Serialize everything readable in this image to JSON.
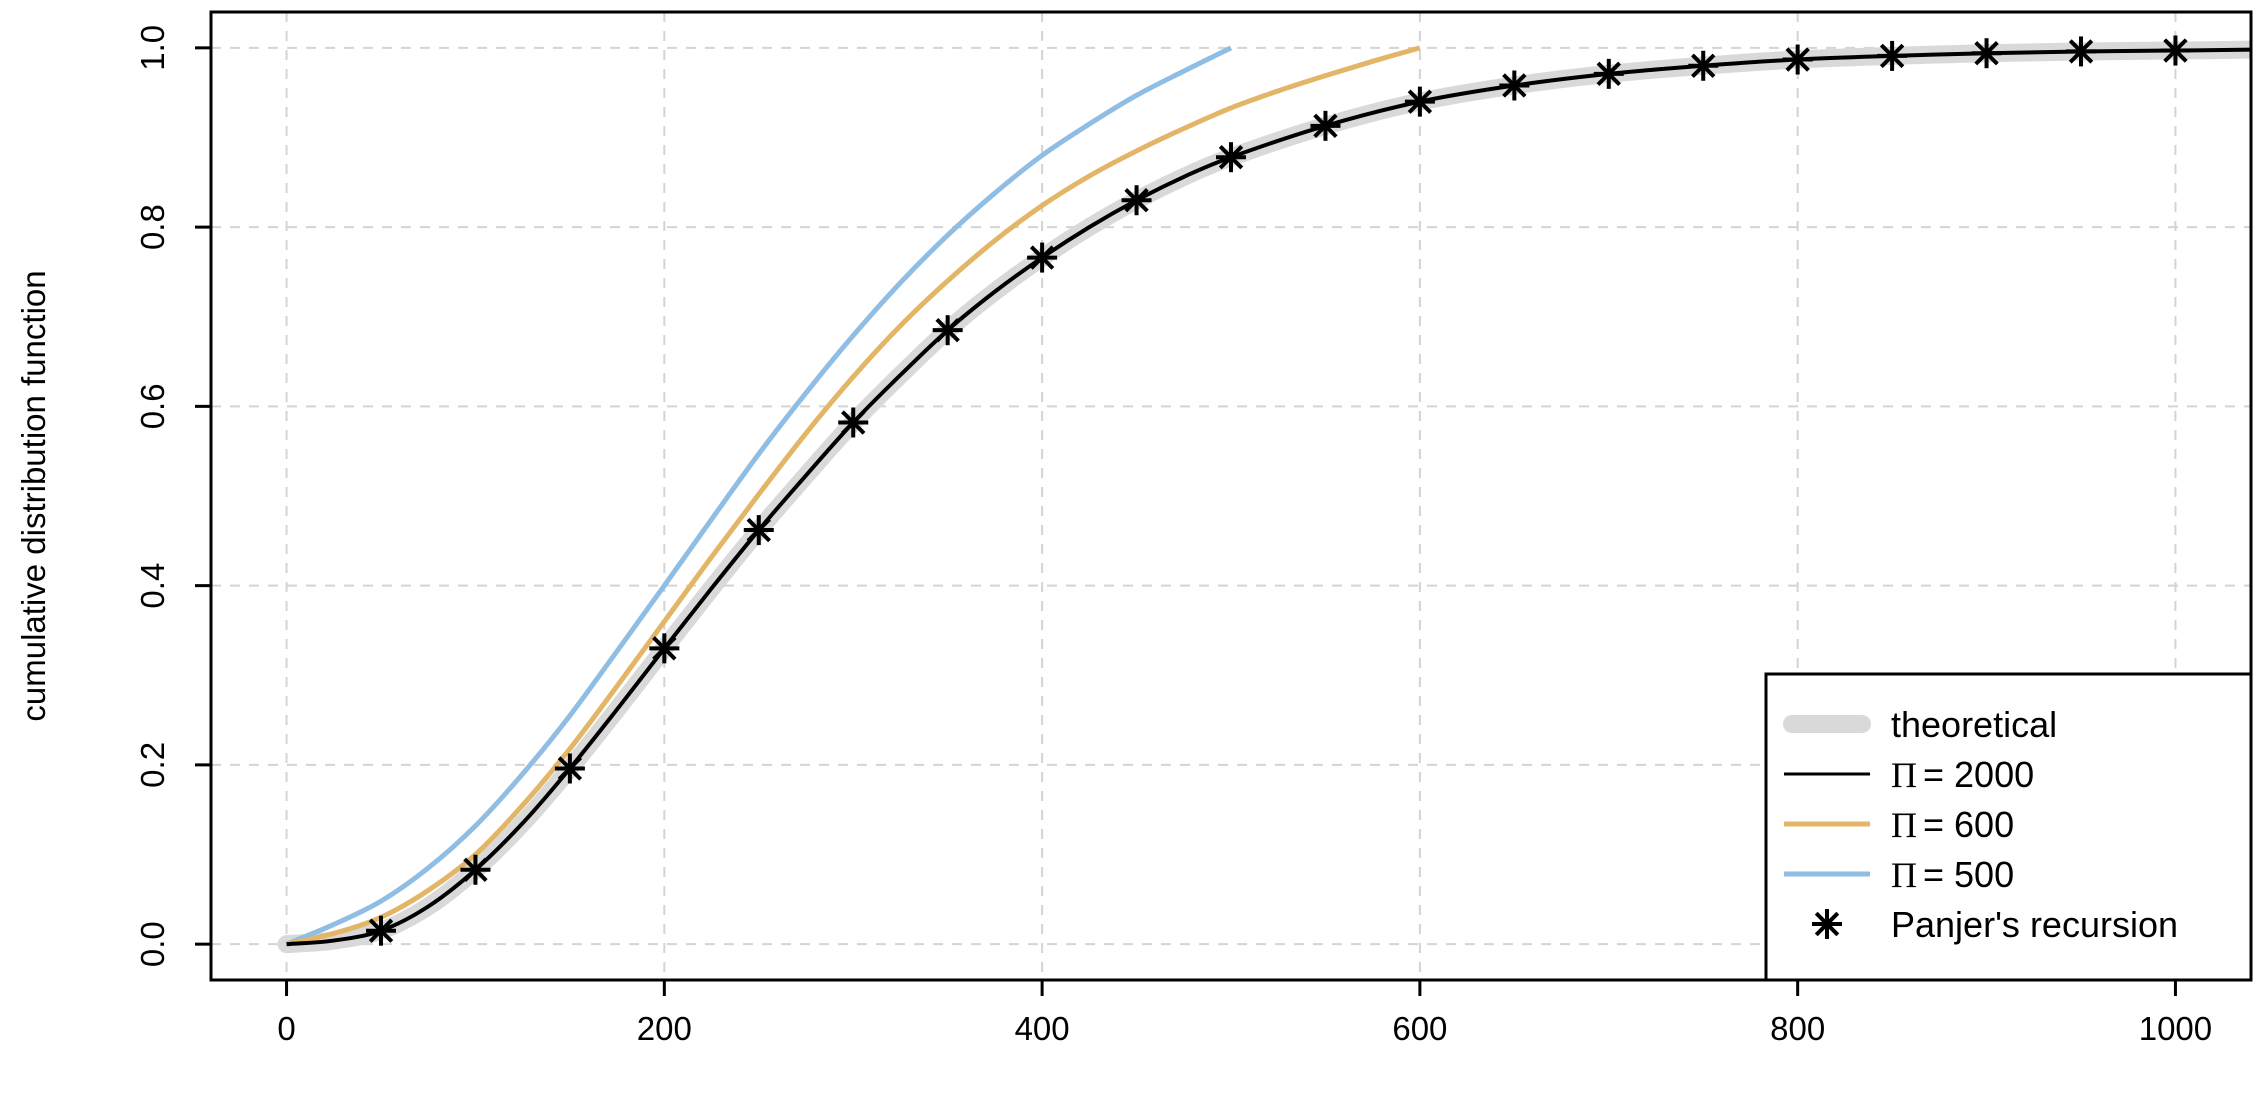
{
  "chart_data": {
    "type": "line",
    "title": "",
    "xlabel": "",
    "ylabel": "cumulative distribution function",
    "xlim": [
      -40,
      1040
    ],
    "ylim": [
      -0.04,
      1.04
    ],
    "x_ticks": [
      "0",
      "200",
      "400",
      "600",
      "800",
      "1000"
    ],
    "y_ticks": [
      "0.0",
      "0.2",
      "0.4",
      "0.6",
      "0.8",
      "1.0"
    ],
    "grid": true,
    "legend_position": "bottom-right",
    "colors": {
      "theoretical": "#d9d9d9",
      "pi2000": "#000000",
      "pi600": "#e3b566",
      "pi500": "#8fbde3",
      "panjer": "#000000"
    },
    "legend": [
      {
        "label": "theoretical",
        "style": "thick-line",
        "color": "#d9d9d9"
      },
      {
        "symbol": "Π",
        "label": "= 2000",
        "style": "line",
        "color": "#000000"
      },
      {
        "symbol": "Π",
        "label": "= 600",
        "style": "line",
        "color": "#e3b566"
      },
      {
        "symbol": "Π",
        "label": "= 500",
        "style": "line",
        "color": "#8fbde3"
      },
      {
        "label": "Panjer's recursion",
        "style": "asterisk",
        "color": "#000000"
      }
    ],
    "series": [
      {
        "key": "theoretical",
        "x": [
          0,
          25,
          50,
          75,
          100,
          125,
          150,
          175,
          200,
          225,
          250,
          275,
          300,
          325,
          350,
          375,
          400,
          425,
          450,
          475,
          500,
          550,
          600,
          650,
          700,
          750,
          800,
          850,
          900,
          950,
          1000,
          1040
        ],
        "y": [
          0.0,
          0.004,
          0.015,
          0.042,
          0.083,
          0.135,
          0.196,
          0.262,
          0.33,
          0.397,
          0.462,
          0.523,
          0.582,
          0.635,
          0.685,
          0.728,
          0.766,
          0.8,
          0.83,
          0.856,
          0.878,
          0.913,
          0.94,
          0.958,
          0.971,
          0.98,
          0.987,
          0.991,
          0.994,
          0.996,
          0.997,
          0.998
        ]
      },
      {
        "key": "pi2000",
        "x": [
          0,
          25,
          50,
          75,
          100,
          125,
          150,
          175,
          200,
          225,
          250,
          275,
          300,
          325,
          350,
          375,
          400,
          425,
          450,
          475,
          500,
          550,
          600,
          650,
          700,
          750,
          800,
          850,
          900,
          950,
          1000,
          1040
        ],
        "y": [
          0.0,
          0.004,
          0.015,
          0.042,
          0.083,
          0.135,
          0.196,
          0.262,
          0.33,
          0.397,
          0.462,
          0.523,
          0.582,
          0.635,
          0.685,
          0.728,
          0.766,
          0.8,
          0.83,
          0.856,
          0.878,
          0.913,
          0.94,
          0.958,
          0.971,
          0.98,
          0.987,
          0.991,
          0.994,
          0.996,
          0.997,
          0.998
        ]
      },
      {
        "key": "pi600",
        "x": [
          0,
          25,
          50,
          75,
          100,
          125,
          150,
          175,
          200,
          225,
          250,
          275,
          300,
          325,
          350,
          375,
          400,
          425,
          450,
          475,
          500,
          525,
          550,
          575,
          600
        ],
        "y": [
          0.0,
          0.012,
          0.03,
          0.06,
          0.1,
          0.155,
          0.218,
          0.288,
          0.36,
          0.432,
          0.502,
          0.57,
          0.633,
          0.69,
          0.74,
          0.785,
          0.824,
          0.857,
          0.885,
          0.91,
          0.933,
          0.952,
          0.969,
          0.985,
          1.0
        ]
      },
      {
        "key": "pi500",
        "x": [
          0,
          25,
          50,
          75,
          100,
          125,
          150,
          175,
          200,
          225,
          250,
          275,
          300,
          325,
          350,
          375,
          400,
          425,
          450,
          475,
          500
        ],
        "y": [
          0.0,
          0.022,
          0.048,
          0.085,
          0.132,
          0.19,
          0.255,
          0.327,
          0.4,
          0.474,
          0.547,
          0.615,
          0.679,
          0.738,
          0.791,
          0.838,
          0.88,
          0.915,
          0.947,
          0.974,
          1.0
        ]
      },
      {
        "key": "panjer",
        "x": [
          50,
          100,
          150,
          200,
          250,
          300,
          350,
          400,
          450,
          500,
          550,
          600,
          650,
          700,
          750,
          800,
          850,
          900,
          950,
          1000
        ],
        "y": [
          0.015,
          0.083,
          0.196,
          0.33,
          0.462,
          0.582,
          0.685,
          0.766,
          0.83,
          0.878,
          0.913,
          0.94,
          0.958,
          0.971,
          0.98,
          0.987,
          0.991,
          0.994,
          0.996,
          0.997
        ]
      }
    ]
  }
}
